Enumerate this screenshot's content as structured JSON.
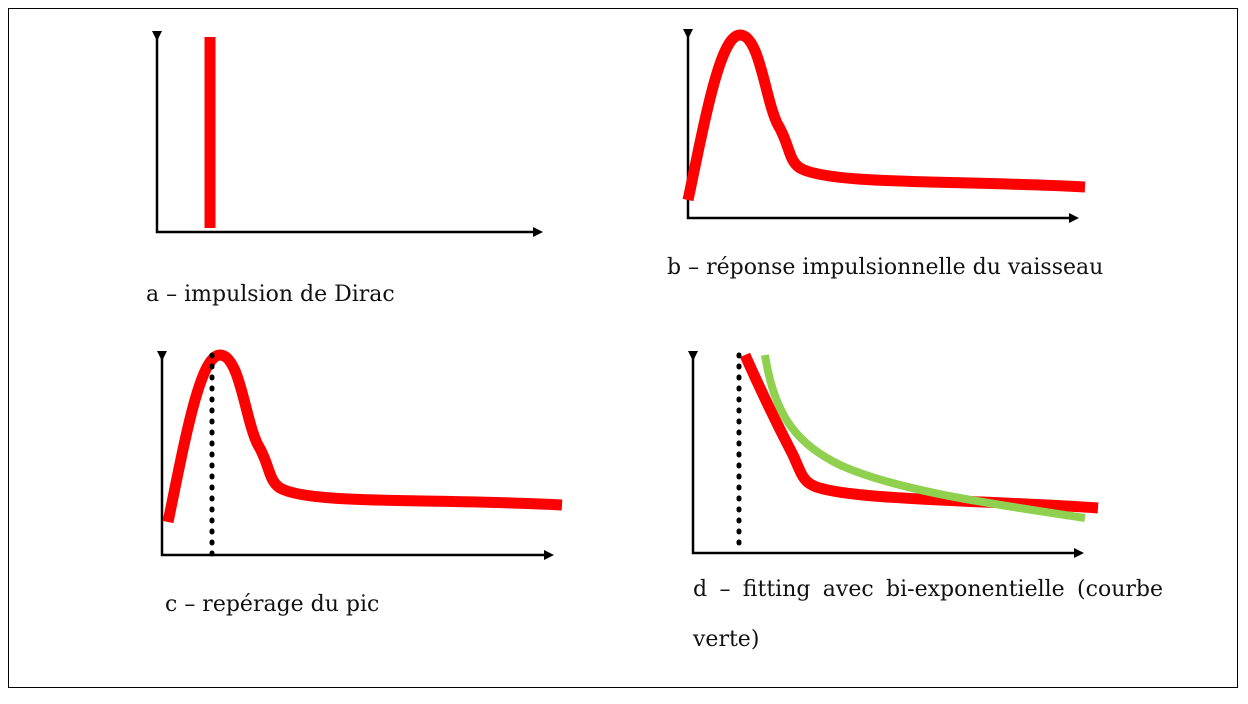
{
  "panels": [
    {
      "caption": "a – impulsion de Dirac"
    },
    {
      "caption": "b – réponse impulsionnelle du vaisseau"
    },
    {
      "caption": "c – repérage du pic"
    },
    {
      "caption": "d – fitting avec bi-exponentielle (courbe verte)"
    }
  ]
}
